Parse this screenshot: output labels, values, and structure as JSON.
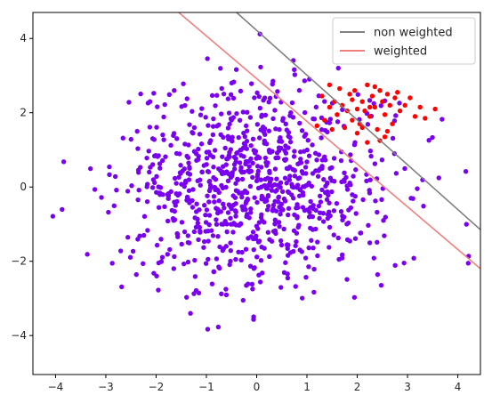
{
  "chart_data": {
    "type": "scatter",
    "xlim": [
      -4.45,
      4.45
    ],
    "ylim": [
      -5.05,
      4.7
    ],
    "xticks": [
      -4,
      -3,
      -2,
      -1,
      0,
      1,
      2,
      3,
      4
    ],
    "yticks": [
      -4,
      -2,
      0,
      2,
      4
    ],
    "xtick_labels": [
      "−4",
      "−3",
      "−2",
      "−1",
      "0",
      "1",
      "2",
      "3",
      "4"
    ],
    "ytick_labels": [
      "−4",
      "−2",
      "0",
      "2",
      "4"
    ],
    "grid": false,
    "legend_position": "top-right",
    "lines": [
      {
        "name": "non weighted",
        "color": "#808080",
        "x": [
          -0.4,
          4.45
        ],
        "y": [
          4.7,
          -1.15
        ]
      },
      {
        "name": "weighted",
        "color": "#f08080",
        "x": [
          -1.55,
          4.45
        ],
        "y": [
          4.7,
          -2.2
        ]
      }
    ],
    "point_series": [
      {
        "color": "#7a00f0",
        "size_note": "majority class",
        "seed": 7,
        "n": 900,
        "sigma": 1.35,
        "center": [
          0,
          0
        ]
      },
      {
        "color": "#ff0000",
        "size_note": "minority class",
        "points": [
          [
            1.45,
            2.75
          ],
          [
            1.55,
            2.3
          ],
          [
            1.6,
            1.95
          ],
          [
            1.7,
            2.2
          ],
          [
            1.75,
            1.6
          ],
          [
            1.8,
            2.05
          ],
          [
            1.85,
            2.5
          ],
          [
            1.9,
            1.8
          ],
          [
            1.95,
            2.6
          ],
          [
            2.0,
            2.1
          ],
          [
            2.05,
            1.7
          ],
          [
            2.1,
            2.3
          ],
          [
            2.15,
            2.05
          ],
          [
            2.2,
            2.75
          ],
          [
            2.25,
            1.9
          ],
          [
            2.3,
            2.45
          ],
          [
            2.35,
            2.15
          ],
          [
            2.4,
            1.55
          ],
          [
            2.45,
            2.6
          ],
          [
            2.5,
            2.3
          ],
          [
            2.55,
            1.95
          ],
          [
            2.6,
            2.5
          ],
          [
            2.65,
            2.2
          ],
          [
            2.7,
            1.7
          ],
          [
            2.75,
            2.4
          ],
          [
            2.85,
            2.05
          ],
          [
            2.95,
            2.2
          ],
          [
            3.05,
            2.4
          ],
          [
            3.15,
            1.9
          ],
          [
            3.25,
            2.15
          ],
          [
            3.35,
            1.85
          ],
          [
            3.55,
            2.1
          ],
          [
            1.35,
            1.8
          ],
          [
            1.5,
            1.55
          ],
          [
            1.65,
            2.65
          ],
          [
            2.0,
            1.45
          ],
          [
            2.2,
            1.2
          ],
          [
            2.35,
            2.7
          ],
          [
            2.55,
            1.35
          ],
          [
            1.2,
            1.65
          ],
          [
            1.45,
            2.15
          ],
          [
            1.9,
            2.35
          ],
          [
            2.6,
            1.5
          ],
          [
            2.1,
            1.6
          ],
          [
            2.8,
            2.55
          ],
          [
            1.3,
            2.45
          ],
          [
            2.45,
            1.25
          ],
          [
            2.25,
            2.15
          ]
        ]
      }
    ]
  },
  "legend": {
    "items": [
      {
        "label": "non weighted",
        "color": "#808080"
      },
      {
        "label": "weighted",
        "color": "#f08080"
      }
    ]
  }
}
